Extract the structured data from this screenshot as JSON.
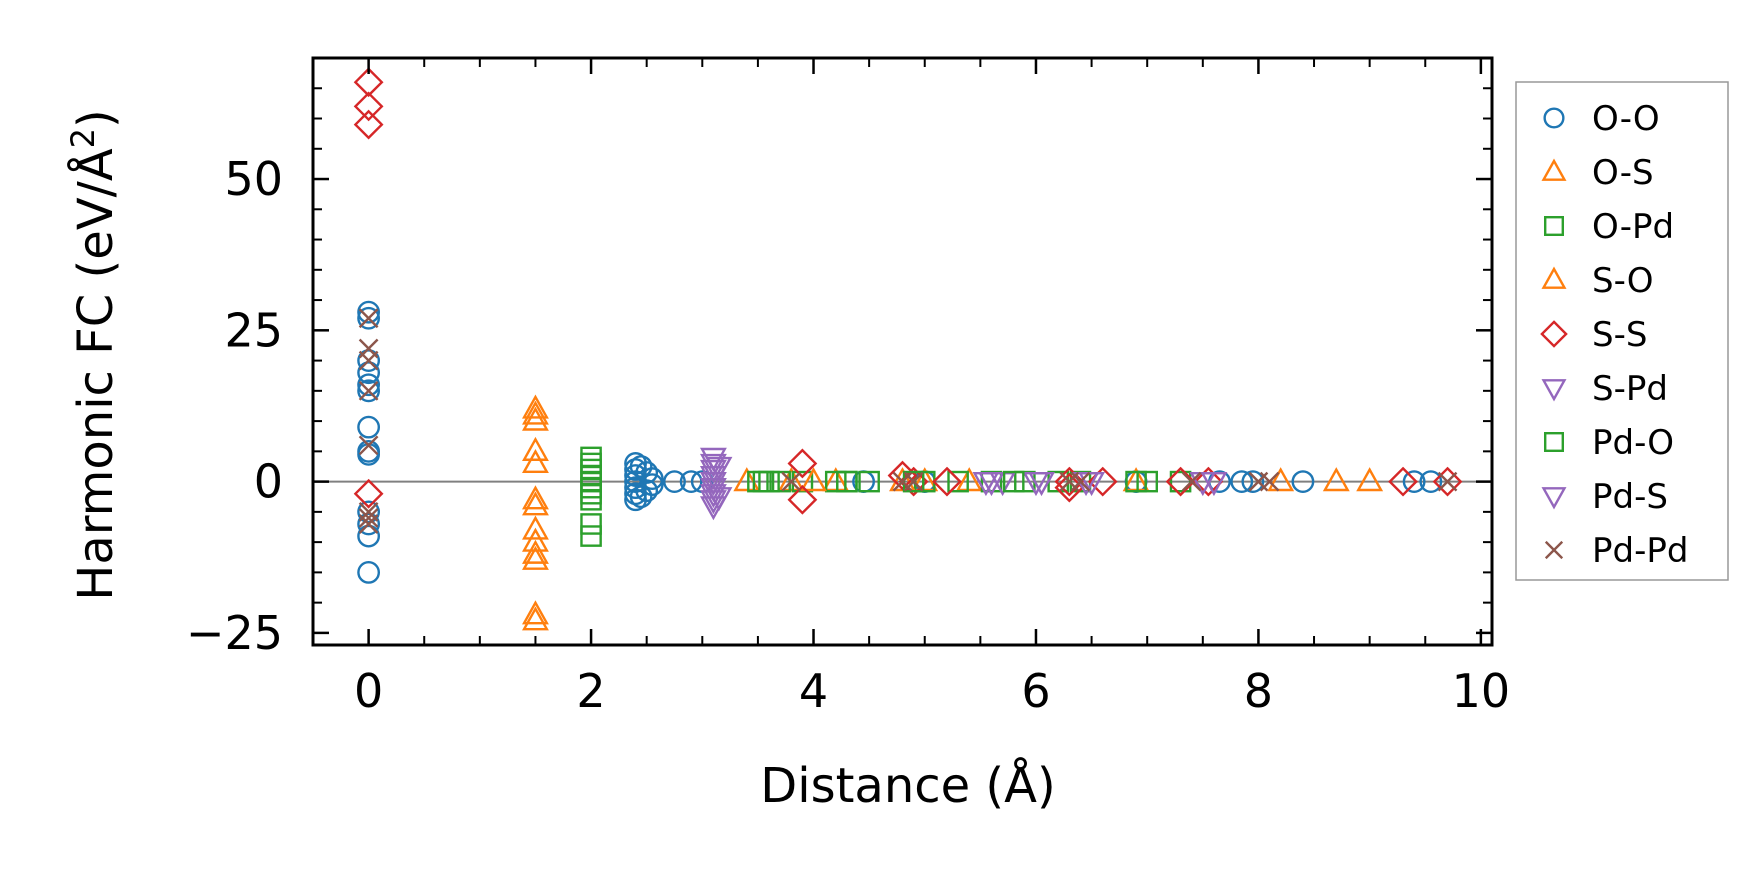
{
  "chart_data": {
    "type": "scatter",
    "xlabel": "Distance (Å)",
    "ylabel_main": "Harmonic FC (eV/Å",
    "ylabel_sup": "2",
    "ylabel_end": ")",
    "xlim": [
      -0.5,
      10.1
    ],
    "ylim": [
      -27,
      70
    ],
    "xticks": [
      0,
      2,
      4,
      6,
      8,
      10
    ],
    "xtick_labels": [
      "0",
      "2",
      "4",
      "6",
      "8",
      "10"
    ],
    "yticks": [
      -25,
      0,
      25,
      50
    ],
    "ytick_labels": [
      "−25",
      "0",
      "25",
      "50"
    ],
    "grid": false,
    "zero_line": true,
    "legend_position": "outside-right",
    "series": [
      {
        "name": "O-O",
        "marker": "circle",
        "color": "#1f77b4",
        "points": [
          [
            0,
            28
          ],
          [
            0,
            27
          ],
          [
            0,
            20
          ],
          [
            0,
            18
          ],
          [
            0,
            16
          ],
          [
            0,
            15
          ],
          [
            0,
            9
          ],
          [
            0,
            5
          ],
          [
            0,
            4.5
          ],
          [
            0,
            -5
          ],
          [
            0,
            -7
          ],
          [
            0,
            -9
          ],
          [
            0,
            -15
          ],
          [
            2.4,
            3
          ],
          [
            2.4,
            2
          ],
          [
            2.4,
            1
          ],
          [
            2.4,
            0
          ],
          [
            2.4,
            -1
          ],
          [
            2.4,
            -2
          ],
          [
            2.4,
            -3
          ],
          [
            2.45,
            2.5
          ],
          [
            2.45,
            -2.5
          ],
          [
            2.5,
            1.5
          ],
          [
            2.5,
            -1.5
          ],
          [
            2.55,
            0.5
          ],
          [
            2.55,
            -0.5
          ],
          [
            2.75,
            0
          ],
          [
            2.9,
            0
          ],
          [
            3.0,
            0
          ],
          [
            4.45,
            0
          ],
          [
            5.0,
            0
          ],
          [
            6.9,
            0
          ],
          [
            7.65,
            0
          ],
          [
            7.85,
            0
          ],
          [
            7.95,
            0
          ],
          [
            8.4,
            0
          ],
          [
            9.4,
            0
          ],
          [
            9.55,
            0
          ]
        ]
      },
      {
        "name": "O-S",
        "marker": "triangle-up",
        "color": "#ff7f0e",
        "points": [
          [
            1.5,
            11
          ],
          [
            1.5,
            10
          ],
          [
            1.5,
            5
          ],
          [
            1.5,
            3
          ],
          [
            1.5,
            -3
          ],
          [
            1.5,
            -4
          ],
          [
            1.5,
            -8
          ],
          [
            1.5,
            -10
          ],
          [
            1.5,
            -12
          ],
          [
            1.5,
            -13
          ],
          [
            3.4,
            0
          ],
          [
            3.8,
            0
          ],
          [
            4.2,
            0
          ],
          [
            5.0,
            0
          ],
          [
            5.4,
            0
          ],
          [
            6.9,
            0
          ],
          [
            8.2,
            0
          ],
          [
            8.7,
            0
          ],
          [
            9.0,
            0
          ]
        ]
      },
      {
        "name": "O-Pd",
        "marker": "square",
        "color": "#2ca02c",
        "points": [
          [
            2.0,
            4
          ],
          [
            2.0,
            3
          ],
          [
            2.0,
            1
          ],
          [
            2.0,
            -1
          ],
          [
            2.0,
            -3
          ],
          [
            2.0,
            -7
          ],
          [
            2.0,
            -9
          ],
          [
            3.5,
            0
          ],
          [
            3.6,
            0
          ],
          [
            3.7,
            0
          ],
          [
            3.9,
            0
          ],
          [
            4.2,
            0
          ],
          [
            4.3,
            0
          ],
          [
            5.0,
            0
          ],
          [
            5.3,
            0
          ],
          [
            5.6,
            0
          ],
          [
            5.9,
            0
          ],
          [
            6.2,
            0
          ],
          [
            6.4,
            0
          ],
          [
            6.9,
            0
          ],
          [
            7.3,
            0
          ]
        ]
      },
      {
        "name": "S-O",
        "marker": "triangle-up",
        "color": "#ff7f0e",
        "points": [
          [
            1.5,
            12
          ],
          [
            1.5,
            -22
          ],
          [
            1.5,
            -23
          ],
          [
            4.0,
            0
          ],
          [
            4.8,
            0
          ]
        ]
      },
      {
        "name": "S-S",
        "marker": "diamond",
        "color": "#d62728",
        "points": [
          [
            0,
            66
          ],
          [
            0,
            62
          ],
          [
            0,
            59
          ],
          [
            0,
            -2
          ],
          [
            3.9,
            3
          ],
          [
            3.9,
            -3
          ],
          [
            4.9,
            0
          ],
          [
            4.8,
            1
          ],
          [
            5.2,
            0
          ],
          [
            6.3,
            0
          ],
          [
            6.3,
            -1
          ],
          [
            6.6,
            0
          ],
          [
            7.3,
            0
          ],
          [
            7.55,
            0
          ],
          [
            9.3,
            0
          ],
          [
            9.7,
            0
          ]
        ]
      },
      {
        "name": "S-Pd",
        "marker": "triangle-down",
        "color": "#9467bd",
        "points": [
          [
            3.1,
            3
          ],
          [
            3.1,
            2
          ],
          [
            3.1,
            1
          ],
          [
            3.1,
            0
          ],
          [
            3.1,
            -1
          ],
          [
            3.1,
            -2
          ],
          [
            3.1,
            -3
          ],
          [
            3.15,
            2.5
          ],
          [
            3.15,
            -2.5
          ],
          [
            5.6,
            0
          ],
          [
            5.7,
            0
          ],
          [
            6.0,
            0
          ],
          [
            6.5,
            0
          ],
          [
            7.5,
            0
          ]
        ]
      },
      {
        "name": "Pd-O",
        "marker": "square",
        "color": "#2ca02c",
        "points": [
          [
            2.0,
            2
          ],
          [
            2.0,
            0
          ],
          [
            2.0,
            -2
          ],
          [
            3.55,
            0
          ],
          [
            4.3,
            0
          ],
          [
            4.5,
            0
          ],
          [
            4.9,
            0
          ],
          [
            5.8,
            0
          ],
          [
            7.0,
            0
          ]
        ]
      },
      {
        "name": "Pd-S",
        "marker": "triangle-down",
        "color": "#9467bd",
        "points": [
          [
            3.1,
            4
          ],
          [
            3.1,
            -4
          ],
          [
            5.55,
            0
          ],
          [
            6.05,
            0
          ],
          [
            6.45,
            0
          ],
          [
            7.6,
            0
          ]
        ]
      },
      {
        "name": "Pd-Pd",
        "marker": "x",
        "color": "#8c564b",
        "points": [
          [
            0,
            27
          ],
          [
            0,
            22
          ],
          [
            0,
            20
          ],
          [
            0,
            15
          ],
          [
            0,
            6
          ],
          [
            0,
            -5
          ],
          [
            0,
            -6
          ],
          [
            0,
            -7
          ],
          [
            3.8,
            0
          ],
          [
            4.8,
            0
          ],
          [
            4.9,
            0
          ],
          [
            6.3,
            0
          ],
          [
            6.4,
            0
          ],
          [
            7.4,
            0
          ],
          [
            8.0,
            0
          ],
          [
            8.1,
            0
          ],
          [
            9.7,
            0
          ]
        ]
      }
    ]
  }
}
